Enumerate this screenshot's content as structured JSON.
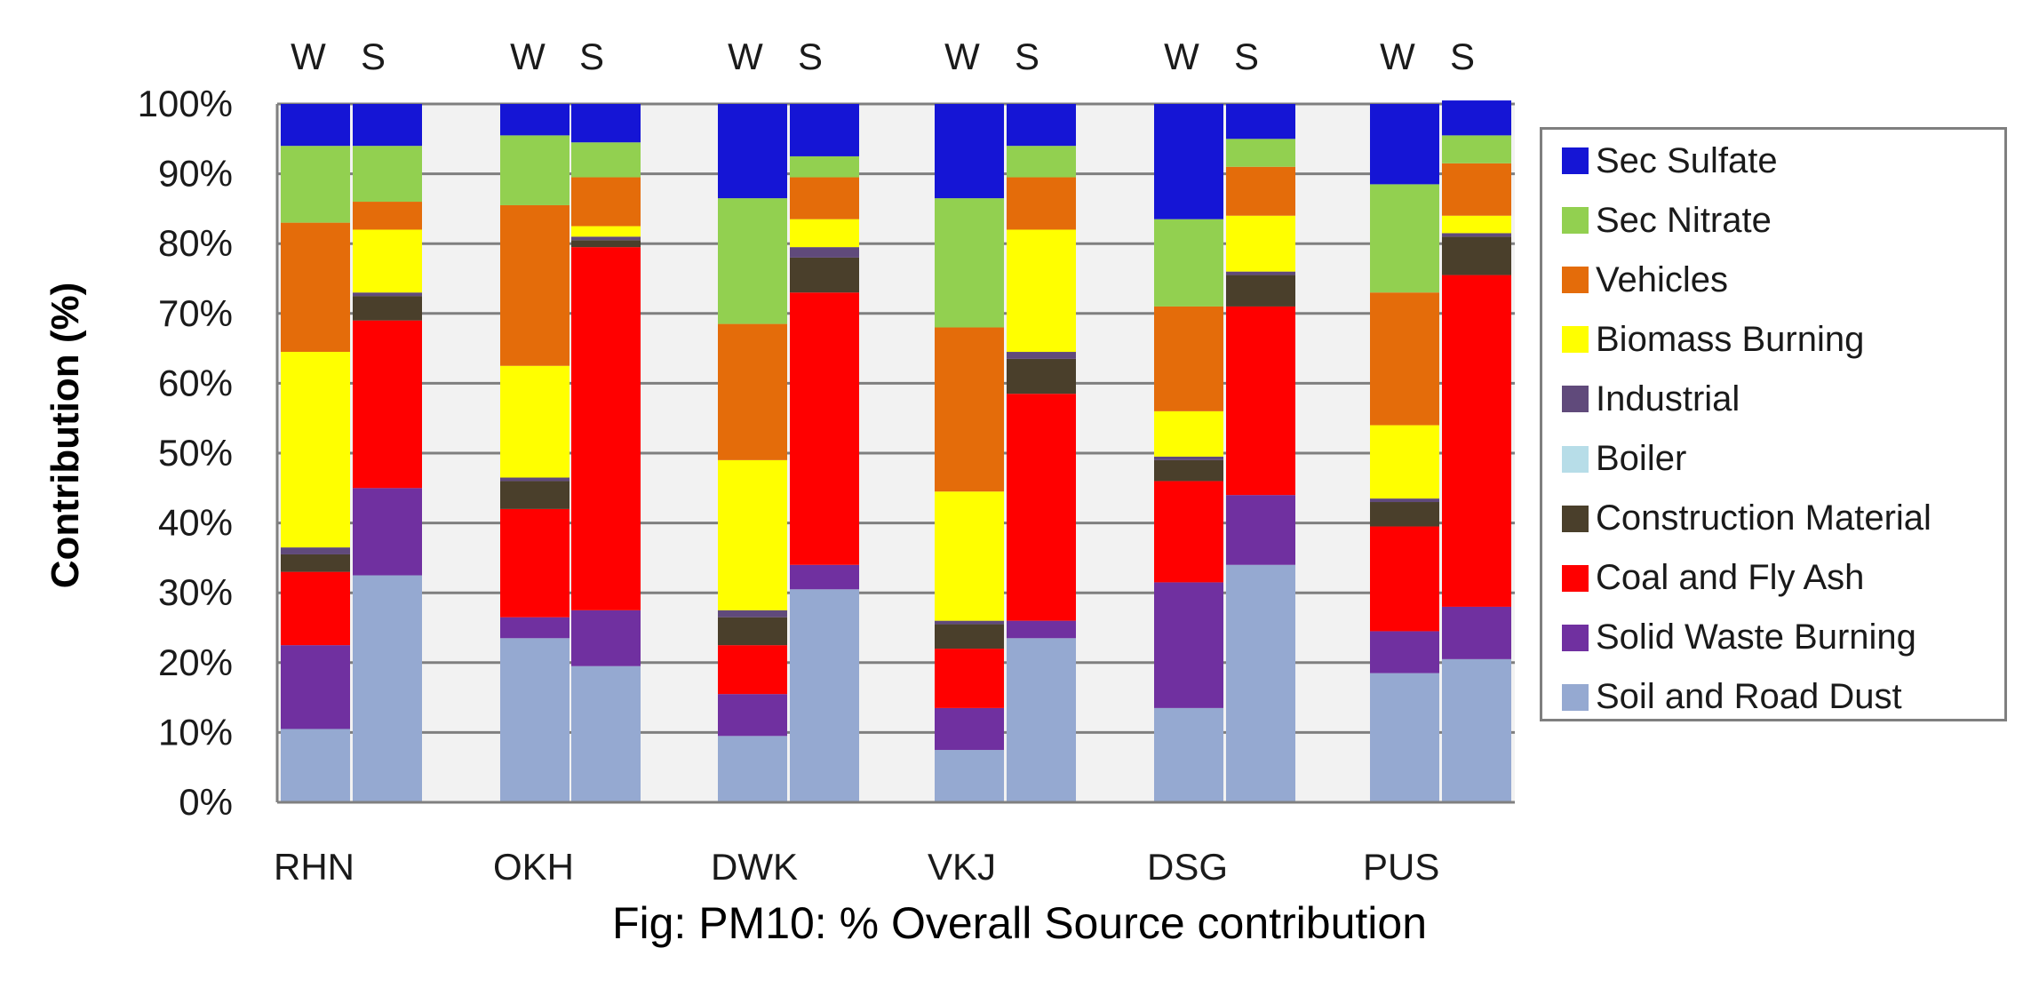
{
  "chart_data": {
    "type": "bar",
    "stacked": true,
    "caption": "Fig: PM10: % Overall Source contribution",
    "ylabel": "Contribution (%)",
    "ylim": [
      0,
      100
    ],
    "yticks": [
      "0%",
      "10%",
      "20%",
      "30%",
      "40%",
      "50%",
      "60%",
      "70%",
      "80%",
      "90%",
      "100%"
    ],
    "grid": true,
    "legend_position": "right",
    "groups": [
      "RHN",
      "OKH",
      "DWK",
      "VKJ",
      "DSG",
      "PUS"
    ],
    "seasons": [
      "W",
      "S"
    ],
    "categories": [
      "RHN W",
      "RHN S",
      "OKH W",
      "OKH S",
      "DWK W",
      "DWK S",
      "VKJ W",
      "VKJ S",
      "DSG W",
      "DSG S",
      "PUS W",
      "PUS S"
    ],
    "series": [
      {
        "name": "Soil and Road Dust",
        "color": "#95a9d1",
        "values": [
          10.5,
          32.5,
          23.5,
          19.5,
          9.5,
          30.5,
          7.5,
          23.5,
          13.5,
          34.0,
          18.5,
          20.5
        ]
      },
      {
        "name": "Solid Waste Burning",
        "color": "#7030a0",
        "values": [
          12.0,
          12.5,
          3.0,
          8.0,
          6.0,
          3.5,
          6.0,
          2.5,
          18.0,
          10.0,
          6.0,
          7.5
        ]
      },
      {
        "name": "Coal and Fly Ash",
        "color": "#ff0000",
        "values": [
          10.5,
          24.0,
          15.5,
          52.0,
          7.0,
          39.0,
          8.5,
          32.5,
          14.5,
          27.0,
          15.0,
          47.5
        ]
      },
      {
        "name": "Construction Material",
        "color": "#4a3f2b",
        "values": [
          2.5,
          3.5,
          4.0,
          1.0,
          4.0,
          5.0,
          3.5,
          5.0,
          3.0,
          4.5,
          3.5,
          5.5
        ]
      },
      {
        "name": "Boiler",
        "color": "#b7dde8",
        "values": [
          0,
          0,
          0,
          0,
          0,
          0,
          0,
          0,
          0,
          0,
          0,
          0
        ]
      },
      {
        "name": "Industrial",
        "color": "#604a7b",
        "values": [
          1.0,
          0.5,
          0.5,
          0.5,
          1.0,
          1.5,
          0.5,
          1.0,
          0.5,
          0.5,
          0.5,
          0.5
        ]
      },
      {
        "name": "Biomass Burning",
        "color": "#ffff00",
        "values": [
          28.0,
          9.0,
          16.0,
          1.5,
          21.5,
          4.0,
          18.5,
          17.5,
          6.5,
          8.0,
          10.5,
          2.5
        ]
      },
      {
        "name": "Vehicles",
        "color": "#e46c0a",
        "values": [
          18.5,
          4.0,
          23.0,
          7.0,
          19.5,
          6.0,
          23.5,
          7.5,
          15.0,
          7.0,
          19.0,
          7.5
        ]
      },
      {
        "name": "Sec Nitrate",
        "color": "#92d050",
        "values": [
          11.0,
          8.0,
          10.0,
          5.0,
          18.0,
          3.0,
          18.5,
          4.5,
          12.5,
          4.0,
          15.5,
          4.0
        ]
      },
      {
        "name": "Sec Sulfate",
        "color": "#1515d5",
        "values": [
          6.0,
          6.0,
          4.5,
          5.5,
          13.5,
          7.5,
          13.5,
          6.0,
          16.5,
          5.0,
          11.5,
          5.0
        ]
      }
    ]
  }
}
